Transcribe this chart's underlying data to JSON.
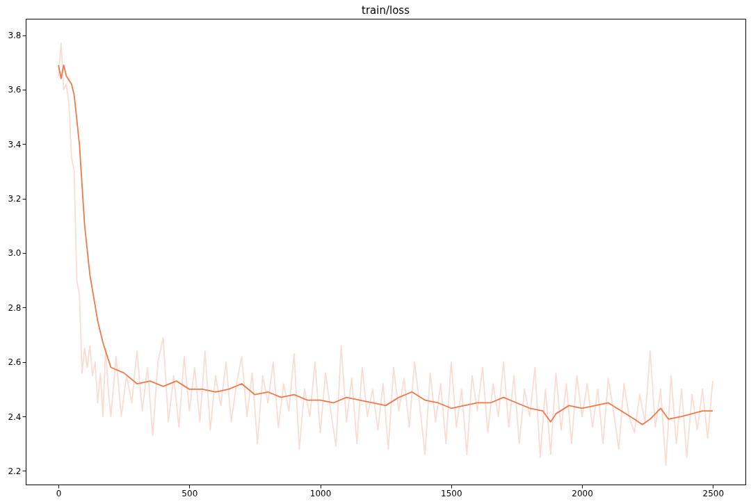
{
  "chart_data": {
    "type": "line",
    "title": "train/loss",
    "xlim": [
      -125,
      2624
    ],
    "ylim": [
      2.15,
      3.86
    ],
    "xticks": [
      0,
      500,
      1000,
      1500,
      2000,
      2500
    ],
    "yticks": [
      2.2,
      2.4,
      2.6,
      2.8,
      {
        "value": 3,
        "label": "3.0"
      },
      3.2,
      3.4,
      3.6,
      3.8
    ],
    "series": [
      {
        "color": "#f9ddd2",
        "x": [
          0,
          10,
          20,
          30,
          40,
          50,
          60,
          70,
          80,
          90,
          100,
          110,
          120,
          130,
          140,
          150,
          160,
          170,
          180,
          190,
          200,
          220,
          240,
          260,
          280,
          300,
          320,
          340,
          360,
          380,
          400,
          420,
          440,
          460,
          480,
          500,
          520,
          540,
          560,
          580,
          600,
          620,
          640,
          660,
          680,
          700,
          720,
          740,
          760,
          780,
          800,
          820,
          840,
          860,
          880,
          900,
          920,
          940,
          960,
          980,
          1000,
          1020,
          1040,
          1060,
          1080,
          1100,
          1120,
          1140,
          1160,
          1180,
          1200,
          1220,
          1240,
          1260,
          1280,
          1300,
          1320,
          1340,
          1360,
          1380,
          1400,
          1420,
          1440,
          1460,
          1480,
          1500,
          1520,
          1540,
          1560,
          1580,
          1600,
          1620,
          1640,
          1660,
          1680,
          1700,
          1720,
          1740,
          1760,
          1780,
          1800,
          1820,
          1840,
          1860,
          1880,
          1900,
          1920,
          1940,
          1960,
          1980,
          2000,
          2020,
          2040,
          2060,
          2080,
          2100,
          2120,
          2140,
          2160,
          2180,
          2200,
          2220,
          2240,
          2260,
          2280,
          2300,
          2320,
          2340,
          2360,
          2380,
          2400,
          2420,
          2440,
          2460,
          2480,
          2499
        ],
        "values": [
          3.65,
          3.77,
          3.6,
          3.62,
          3.55,
          3.35,
          3.3,
          2.9,
          2.85,
          2.56,
          2.65,
          2.58,
          2.66,
          2.55,
          2.6,
          2.45,
          2.56,
          2.4,
          2.65,
          2.5,
          2.4,
          2.62,
          2.4,
          2.55,
          2.45,
          2.64,
          2.42,
          2.58,
          2.33,
          2.6,
          2.69,
          2.38,
          2.55,
          2.36,
          2.62,
          2.42,
          2.58,
          2.38,
          2.64,
          2.35,
          2.55,
          2.44,
          2.6,
          2.38,
          2.52,
          2.62,
          2.4,
          2.56,
          2.3,
          2.55,
          2.45,
          2.6,
          2.36,
          2.52,
          2.42,
          2.63,
          2.28,
          2.5,
          2.4,
          2.6,
          2.34,
          2.56,
          2.42,
          2.29,
          2.66,
          2.38,
          2.54,
          2.3,
          2.58,
          2.4,
          2.5,
          2.35,
          2.52,
          2.28,
          2.58,
          2.42,
          2.54,
          2.36,
          2.6,
          2.44,
          2.26,
          2.56,
          2.38,
          2.52,
          2.3,
          2.6,
          2.36,
          2.5,
          2.26,
          2.55,
          2.42,
          2.58,
          2.34,
          2.52,
          2.4,
          2.6,
          2.36,
          2.55,
          2.3,
          2.5,
          2.4,
          2.58,
          2.25,
          2.5,
          2.26,
          2.56,
          2.35,
          2.52,
          2.3,
          2.55,
          2.4,
          2.52,
          2.36,
          2.5,
          2.3,
          2.54,
          2.42,
          2.28,
          2.52,
          2.4,
          2.34,
          2.48,
          2.38,
          2.64,
          2.36,
          2.5,
          2.22,
          2.55,
          2.3,
          2.5,
          2.25,
          2.48,
          2.35,
          2.5,
          2.32,
          2.53
        ]
      },
      {
        "color": "#f0784b",
        "x": [
          0,
          10,
          20,
          30,
          50,
          60,
          80,
          100,
          120,
          150,
          170,
          200,
          250,
          300,
          350,
          400,
          450,
          500,
          550,
          600,
          650,
          700,
          750,
          800,
          850,
          900,
          950,
          1000,
          1050,
          1100,
          1150,
          1200,
          1250,
          1300,
          1350,
          1400,
          1450,
          1500,
          1550,
          1600,
          1650,
          1700,
          1750,
          1800,
          1850,
          1880,
          1900,
          1950,
          2000,
          2050,
          2100,
          2150,
          2200,
          2230,
          2260,
          2300,
          2330,
          2380,
          2420,
          2460,
          2499
        ],
        "values": [
          3.69,
          3.64,
          3.69,
          3.65,
          3.62,
          3.58,
          3.4,
          3.1,
          2.92,
          2.75,
          2.67,
          2.58,
          2.56,
          2.52,
          2.53,
          2.51,
          2.53,
          2.5,
          2.5,
          2.49,
          2.5,
          2.52,
          2.48,
          2.49,
          2.47,
          2.48,
          2.46,
          2.46,
          2.45,
          2.47,
          2.46,
          2.45,
          2.44,
          2.47,
          2.49,
          2.46,
          2.45,
          2.43,
          2.44,
          2.45,
          2.45,
          2.47,
          2.45,
          2.43,
          2.42,
          2.38,
          2.41,
          2.44,
          2.43,
          2.44,
          2.45,
          2.42,
          2.39,
          2.37,
          2.39,
          2.43,
          2.39,
          2.4,
          2.41,
          2.42,
          2.42
        ]
      }
    ]
  }
}
